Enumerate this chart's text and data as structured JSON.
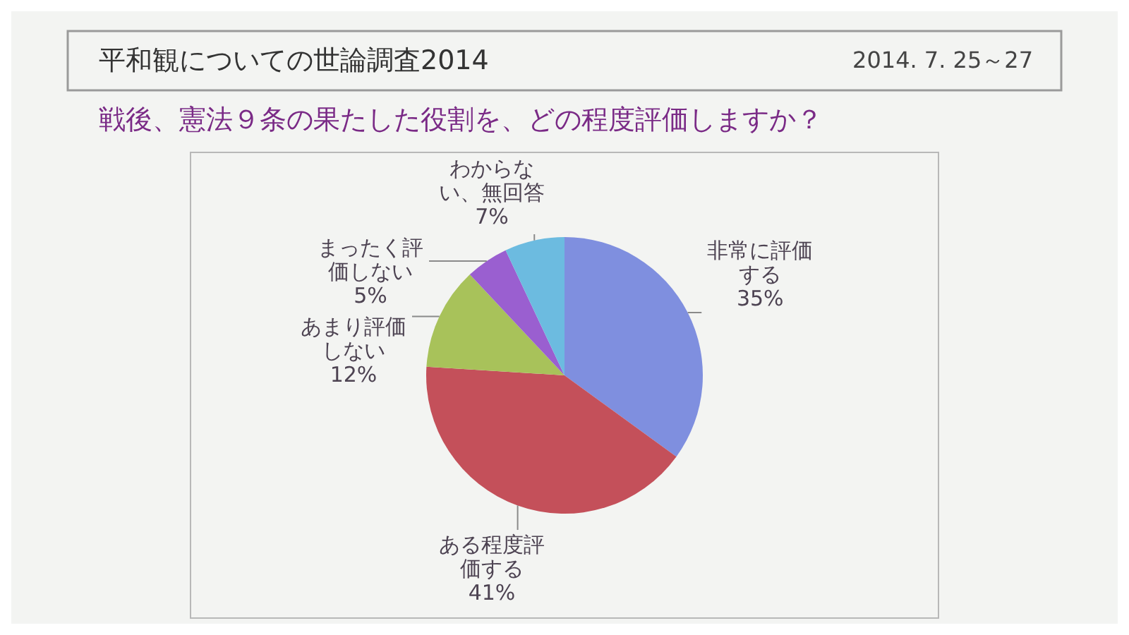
{
  "chart_data": {
    "type": "pie",
    "title": "平和観についての世論調査2014",
    "subtitle": "戦後、憲法９条の果たした役割を、どの程度評価しますか？",
    "annotations": [
      "2014. 7. 25～27"
    ],
    "categories": [
      "非常に評価する",
      "ある程度評価する",
      "あまり評価しない",
      "まったく評価しない",
      "わからない、無回答"
    ],
    "values": [
      35,
      41,
      12,
      5,
      7
    ],
    "colors": [
      "#7f8fdf",
      "#c4505a",
      "#a8c25a",
      "#9a5fd0",
      "#6cbbe0"
    ],
    "value_labels": [
      "35%",
      "41%",
      "12%",
      "5%",
      "7%"
    ],
    "legend": false
  }
}
